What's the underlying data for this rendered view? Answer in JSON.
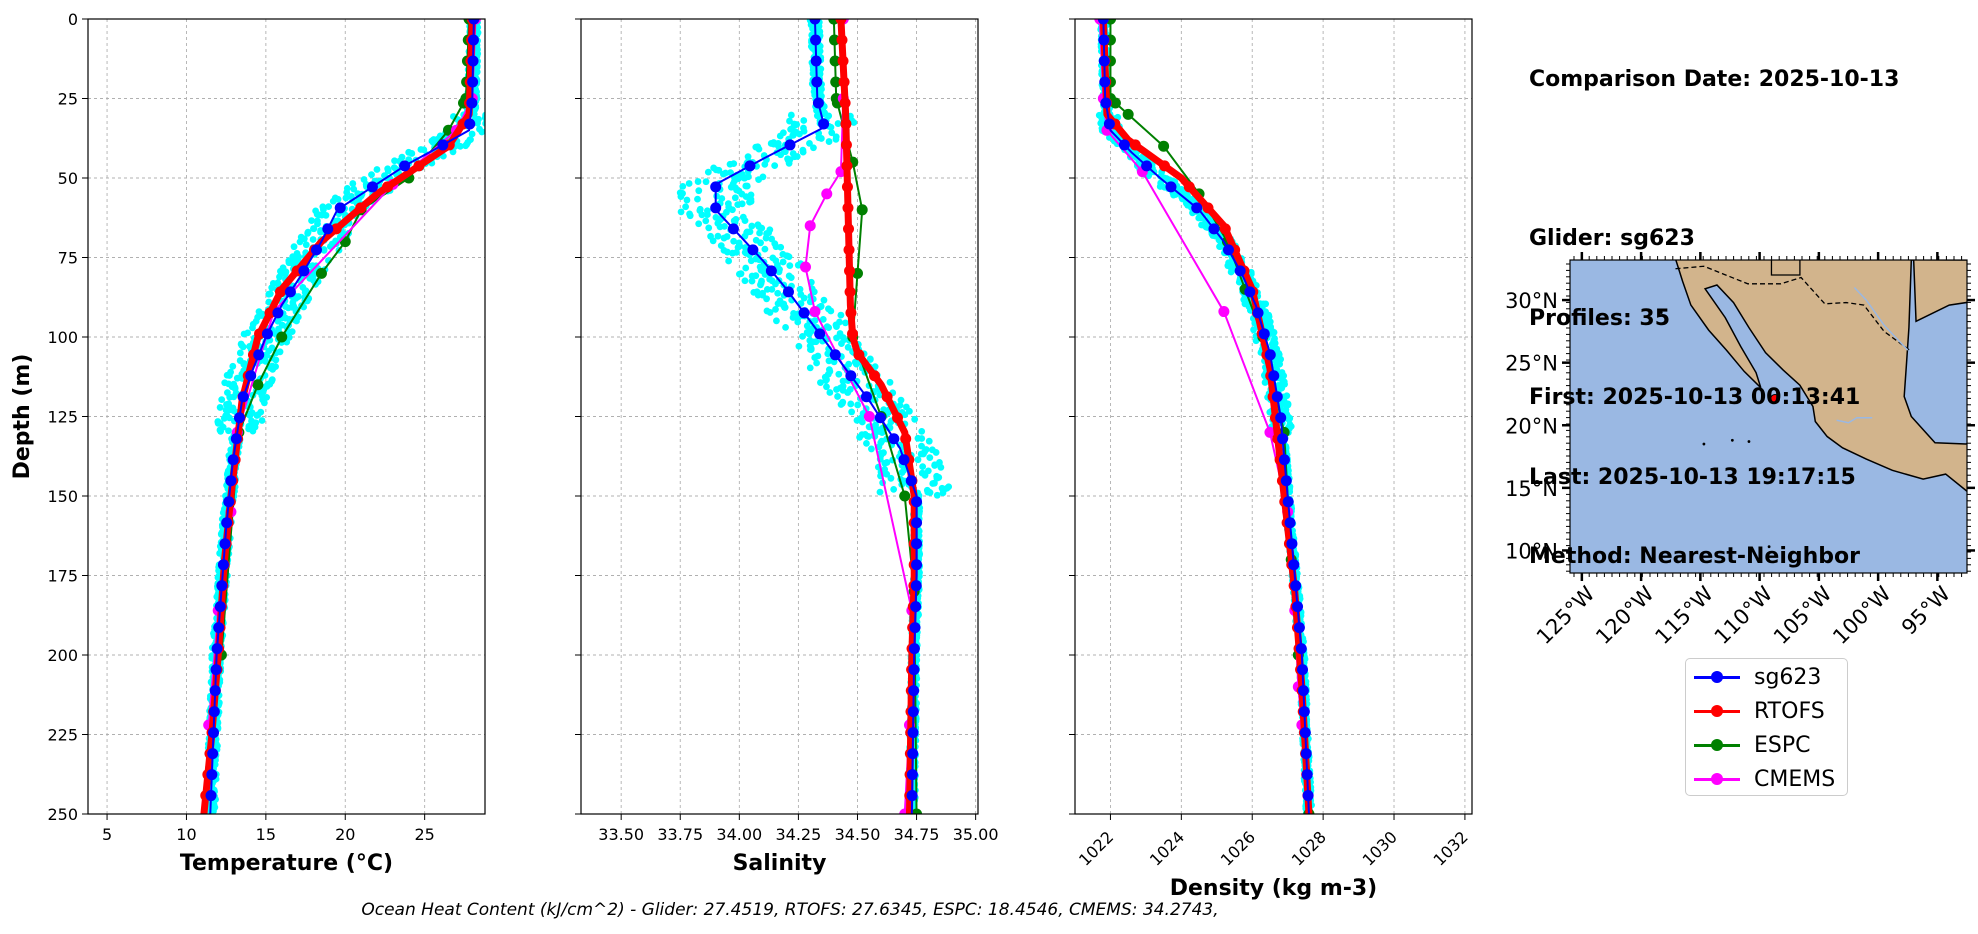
{
  "info": {
    "comparison_date": "Comparison Date: 2025-10-13",
    "glider": "Glider: sg623",
    "profiles": "Profiles: 35",
    "first": "First: 2025-10-13 00:13:41",
    "last": "Last: 2025-10-13 19:17:15",
    "method": "Method: Nearest-Neighbor"
  },
  "footer": "Ocean Heat Content (kJ/cm^2) - Glider: 27.4519,  RTOFS: 27.6345,  ESPC: 18.4546,  CMEMS: 34.2743,",
  "legend": [
    {
      "name": "sg623",
      "color": "#0000ff"
    },
    {
      "name": "RTOFS",
      "color": "#ff0000"
    },
    {
      "name": "ESPC",
      "color": "#008000"
    },
    {
      "name": "CMEMS",
      "color": "#ff00ff"
    }
  ],
  "colors": {
    "glider_raw": "#00ffff",
    "ocean": "#9ab8e3",
    "land": "#d2b48c"
  },
  "chart_data": [
    {
      "type": "line",
      "xlabel": "Temperature (°C)",
      "ylabel": "Depth (m)",
      "xlim": [
        3.8,
        28.8
      ],
      "ylim": [
        250,
        0
      ],
      "xticks": [
        5,
        10,
        15,
        20,
        25
      ],
      "yticks": [
        0,
        25,
        50,
        75,
        100,
        125,
        150,
        175,
        200,
        225,
        250
      ],
      "grid": true,
      "series": [
        {
          "name": "sg623",
          "x": [
            28.1,
            28.0,
            27.8,
            26.0,
            23.8,
            19.5,
            18.5,
            17.3,
            16.0,
            15.0,
            14.2,
            13.5,
            12.9,
            12.5,
            12.2,
            11.9,
            11.7,
            11.5
          ],
          "y": [
            0,
            25,
            35,
            40,
            46,
            60,
            70,
            80,
            90,
            100,
            110,
            120,
            140,
            160,
            180,
            200,
            225,
            250
          ]
        },
        {
          "name": "RTOFS",
          "x": [
            28.0,
            27.8,
            26.5,
            22.0,
            18.5,
            16.0,
            14.5,
            13.5,
            12.8,
            12.4,
            12.0,
            11.6,
            11.1
          ],
          "y": [
            0,
            30,
            40,
            55,
            70,
            85,
            100,
            120,
            150,
            170,
            200,
            225,
            250
          ]
        },
        {
          "name": "ESPC",
          "x": [
            27.8,
            27.6,
            26.5,
            24.0,
            21.0,
            20.0,
            18.5,
            16.0,
            14.5,
            13.3,
            12.2
          ],
          "y": [
            0,
            25,
            35,
            50,
            60,
            70,
            80,
            100,
            115,
            130,
            200
          ]
        },
        {
          "name": "CMEMS",
          "x": [
            28.2,
            28.0,
            27.0,
            23.0,
            15.5,
            13.2,
            12.8,
            12.0,
            11.4
          ],
          "y": [
            0,
            25,
            35,
            52,
            92,
            130,
            155,
            186,
            222
          ]
        }
      ]
    },
    {
      "type": "line",
      "xlabel": "Salinity",
      "ylabel": "",
      "xlim": [
        33.33,
        35.01
      ],
      "ylim": [
        250,
        0
      ],
      "xticks": [
        33.5,
        33.75,
        34.0,
        34.25,
        34.5,
        34.75,
        35.0
      ],
      "yticks": [
        0,
        25,
        50,
        75,
        100,
        125,
        150,
        175,
        200,
        225,
        250
      ],
      "grid": true,
      "series": [
        {
          "name": "sg623",
          "x": [
            34.32,
            34.33,
            34.36,
            34.1,
            33.9,
            33.9,
            34.0,
            34.1,
            34.2,
            34.3,
            34.4,
            34.55,
            34.68,
            34.75,
            34.75,
            34.74,
            34.73
          ],
          "y": [
            0,
            25,
            34,
            44,
            52,
            60,
            68,
            76,
            85,
            95,
            105,
            120,
            135,
            150,
            175,
            200,
            250
          ]
        },
        {
          "name": "RTOFS",
          "x": [
            34.43,
            34.45,
            34.46,
            34.47,
            34.48,
            34.5,
            34.6,
            34.7,
            34.74,
            34.74,
            34.73,
            34.72
          ],
          "y": [
            0,
            30,
            60,
            90,
            100,
            105,
            115,
            130,
            150,
            175,
            200,
            250
          ]
        },
        {
          "name": "ESPC",
          "x": [
            34.4,
            34.41,
            34.48,
            34.52,
            34.5,
            34.48,
            34.6,
            34.7,
            34.74,
            34.75
          ],
          "y": [
            0,
            25,
            45,
            60,
            80,
            100,
            125,
            150,
            180,
            250
          ]
        },
        {
          "name": "CMEMS",
          "x": [
            34.44,
            34.44,
            34.43,
            34.37,
            34.3,
            34.28,
            34.32,
            34.55,
            34.73,
            34.72,
            34.7
          ],
          "y": [
            0,
            25,
            48,
            55,
            65,
            78,
            92,
            125,
            186,
            222,
            250
          ]
        }
      ]
    },
    {
      "type": "line",
      "xlabel": "Density (kg m-3)",
      "ylabel": "",
      "xlim": [
        1021.0,
        1032.2
      ],
      "ylim": [
        250,
        0
      ],
      "xticks": [
        1022,
        1024,
        1026,
        1028,
        1030,
        1032
      ],
      "yticks": [
        0,
        25,
        50,
        75,
        100,
        125,
        150,
        175,
        200,
        225,
        250
      ],
      "grid": true,
      "series": [
        {
          "name": "sg623",
          "x": [
            1021.8,
            1021.85,
            1022.0,
            1022.6,
            1023.4,
            1024.5,
            1025.2,
            1025.7,
            1026.1,
            1026.5,
            1026.8,
            1027.0,
            1027.2,
            1027.4,
            1027.6
          ],
          "y": [
            0,
            25,
            35,
            42,
            50,
            60,
            70,
            80,
            90,
            105,
            125,
            150,
            175,
            200,
            250
          ]
        },
        {
          "name": "RTOFS",
          "x": [
            1021.8,
            1021.9,
            1022.5,
            1024.0,
            1025.2,
            1026.0,
            1026.5,
            1026.9,
            1027.2,
            1027.4,
            1027.6
          ],
          "y": [
            0,
            30,
            38,
            50,
            65,
            85,
            110,
            150,
            180,
            210,
            250
          ]
        },
        {
          "name": "ESPC",
          "x": [
            1022.0,
            1022.0,
            1022.5,
            1023.5,
            1024.5,
            1025.3,
            1025.8,
            1026.3,
            1026.9,
            1027.1,
            1027.3,
            1027.6
          ],
          "y": [
            0,
            25,
            30,
            40,
            55,
            70,
            85,
            100,
            130,
            170,
            200,
            250
          ]
        },
        {
          "name": "CMEMS",
          "x": [
            1021.7,
            1021.8,
            1021.9,
            1022.9,
            1025.2,
            1026.5,
            1027.0,
            1027.2,
            1027.3,
            1027.4
          ],
          "y": [
            0,
            25,
            35,
            48,
            92,
            130,
            155,
            186,
            210,
            222
          ]
        }
      ]
    }
  ],
  "map": {
    "lat_labels": [
      "30°N",
      "25°N",
      "20°N",
      "15°N",
      "10°N"
    ],
    "lon_labels": [
      "125°W",
      "120°W",
      "115°W",
      "110°W",
      "105°W",
      "100°W",
      "95°W"
    ],
    "lon_range": [
      -126,
      -92.5
    ],
    "lat_range": [
      8.2,
      33.2
    ],
    "glider_position": {
      "lon": -108.7,
      "lat": 22.1
    }
  }
}
